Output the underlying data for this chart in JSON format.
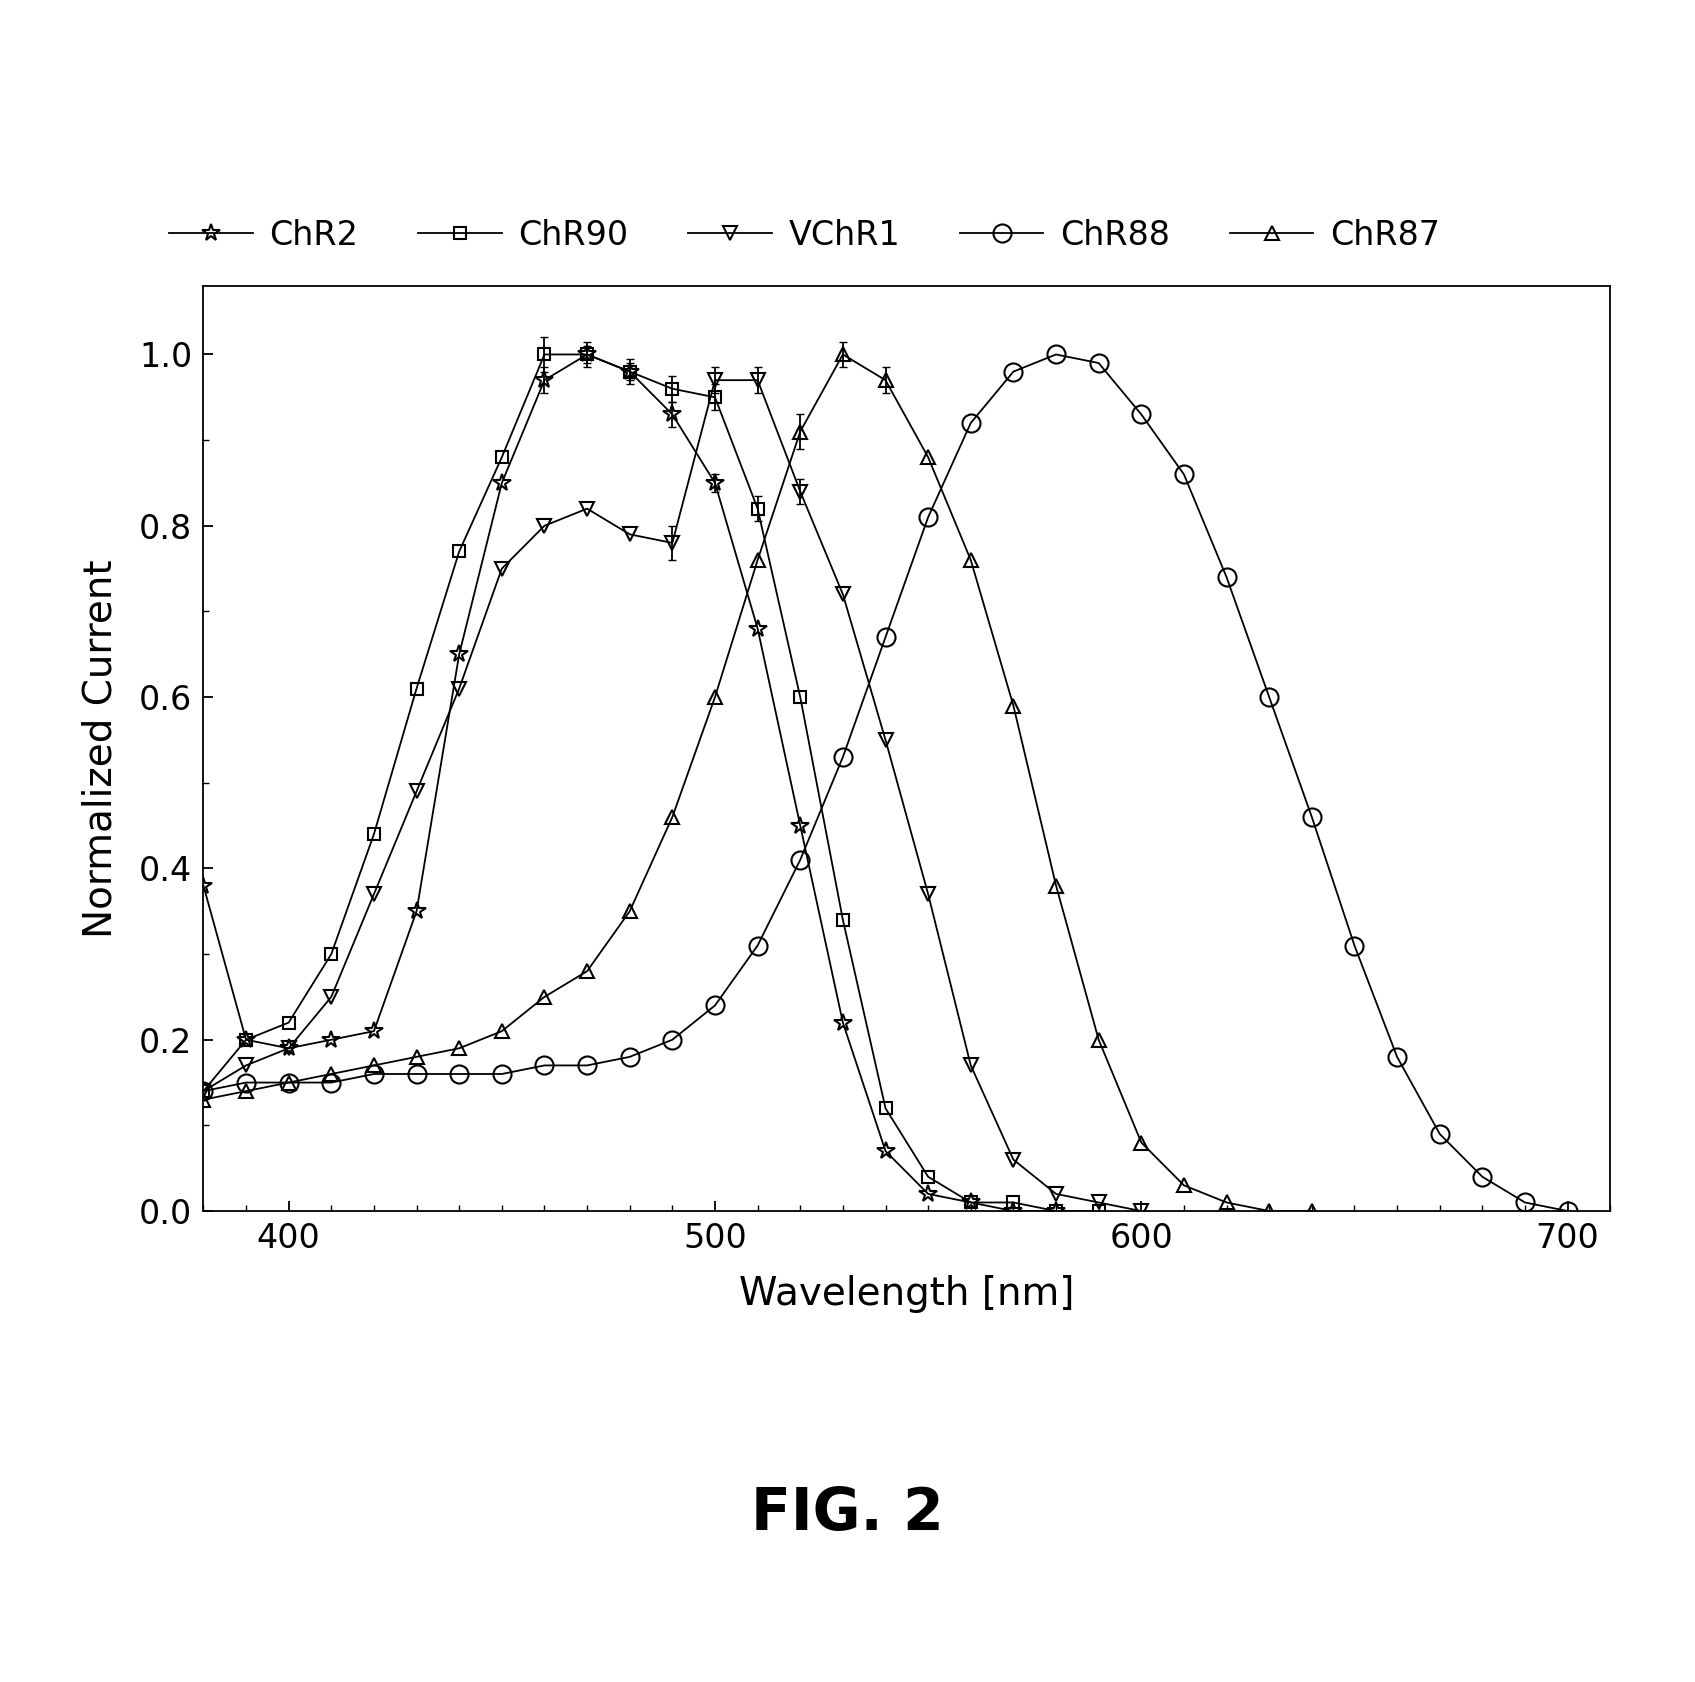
{
  "xlabel": "Wavelength [nm]",
  "ylabel": "Normalized Current",
  "xlim": [
    380,
    710
  ],
  "ylim": [
    0.0,
    1.08
  ],
  "xticks": [
    400,
    500,
    600,
    700
  ],
  "yticks": [
    0.0,
    0.2,
    0.4,
    0.6,
    0.8,
    1.0
  ],
  "series": {
    "ChR2": {
      "wavelengths": [
        380,
        390,
        400,
        410,
        420,
        430,
        440,
        450,
        460,
        470,
        480,
        490,
        500,
        510,
        520,
        530,
        540,
        550,
        560,
        570,
        580
      ],
      "values": [
        0.38,
        0.2,
        0.19,
        0.2,
        0.21,
        0.35,
        0.65,
        0.85,
        0.97,
        1.0,
        0.98,
        0.93,
        0.85,
        0.68,
        0.45,
        0.22,
        0.07,
        0.02,
        0.01,
        0.0,
        0.0
      ],
      "marker": "*",
      "markersize": 13
    },
    "ChR90": {
      "wavelengths": [
        380,
        390,
        400,
        410,
        420,
        430,
        440,
        450,
        460,
        470,
        480,
        490,
        500,
        510,
        520,
        530,
        540,
        550,
        560,
        570,
        580,
        590
      ],
      "values": [
        0.14,
        0.2,
        0.22,
        0.3,
        0.44,
        0.61,
        0.77,
        0.88,
        1.0,
        1.0,
        0.98,
        0.96,
        0.95,
        0.82,
        0.6,
        0.34,
        0.12,
        0.04,
        0.01,
        0.01,
        0.0,
        0.0
      ],
      "marker": "s",
      "markersize": 9
    },
    "VChR1": {
      "wavelengths": [
        380,
        390,
        400,
        410,
        420,
        430,
        440,
        450,
        460,
        470,
        480,
        490,
        500,
        510,
        520,
        530,
        540,
        550,
        560,
        570,
        580,
        590,
        600
      ],
      "values": [
        0.14,
        0.17,
        0.19,
        0.25,
        0.37,
        0.49,
        0.61,
        0.75,
        0.8,
        0.82,
        0.79,
        0.78,
        0.97,
        0.97,
        0.84,
        0.72,
        0.55,
        0.37,
        0.17,
        0.06,
        0.02,
        0.01,
        0.0
      ],
      "marker": "v",
      "markersize": 10
    },
    "ChR87": {
      "wavelengths": [
        380,
        390,
        400,
        410,
        420,
        430,
        440,
        450,
        460,
        470,
        480,
        490,
        500,
        510,
        520,
        530,
        540,
        550,
        560,
        570,
        580,
        590,
        600,
        610,
        620,
        630,
        640
      ],
      "values": [
        0.13,
        0.14,
        0.15,
        0.16,
        0.17,
        0.18,
        0.19,
        0.21,
        0.25,
        0.28,
        0.35,
        0.46,
        0.6,
        0.76,
        0.91,
        1.0,
        0.97,
        0.88,
        0.76,
        0.59,
        0.38,
        0.2,
        0.08,
        0.03,
        0.01,
        0.0,
        0.0
      ],
      "marker": "^",
      "markersize": 10
    },
    "ChR88": {
      "wavelengths": [
        380,
        390,
        400,
        410,
        420,
        430,
        440,
        450,
        460,
        470,
        480,
        490,
        500,
        510,
        520,
        530,
        540,
        550,
        560,
        570,
        580,
        590,
        600,
        610,
        620,
        630,
        640,
        650,
        660,
        670,
        680,
        690,
        700
      ],
      "values": [
        0.14,
        0.15,
        0.15,
        0.15,
        0.16,
        0.16,
        0.16,
        0.16,
        0.17,
        0.17,
        0.18,
        0.2,
        0.24,
        0.31,
        0.41,
        0.53,
        0.67,
        0.81,
        0.92,
        0.98,
        1.0,
        0.99,
        0.93,
        0.86,
        0.74,
        0.6,
        0.46,
        0.31,
        0.18,
        0.09,
        0.04,
        0.01,
        0.0
      ],
      "marker": "o",
      "markersize": 13
    }
  },
  "error_bars": {
    "ChR2": {
      "wavelengths": [
        460,
        470,
        480,
        490,
        500
      ],
      "errors": [
        0.015,
        0.01,
        0.01,
        0.015,
        0.01
      ]
    },
    "ChR90": {
      "wavelengths": [
        460,
        470,
        480,
        490,
        500,
        510
      ],
      "errors": [
        0.02,
        0.015,
        0.015,
        0.015,
        0.015,
        0.015
      ]
    },
    "VChR1": {
      "wavelengths": [
        490,
        500,
        510,
        520
      ],
      "errors": [
        0.02,
        0.015,
        0.015,
        0.015
      ]
    },
    "ChR87": {
      "wavelengths": [
        520,
        530,
        540
      ],
      "errors": [
        0.02,
        0.015,
        0.015
      ]
    }
  },
  "background_color": "#ffffff",
  "fig_label": "FIG. 2",
  "series_order": [
    "ChR2",
    "ChR90",
    "VChR1",
    "ChR88",
    "ChR87"
  ]
}
